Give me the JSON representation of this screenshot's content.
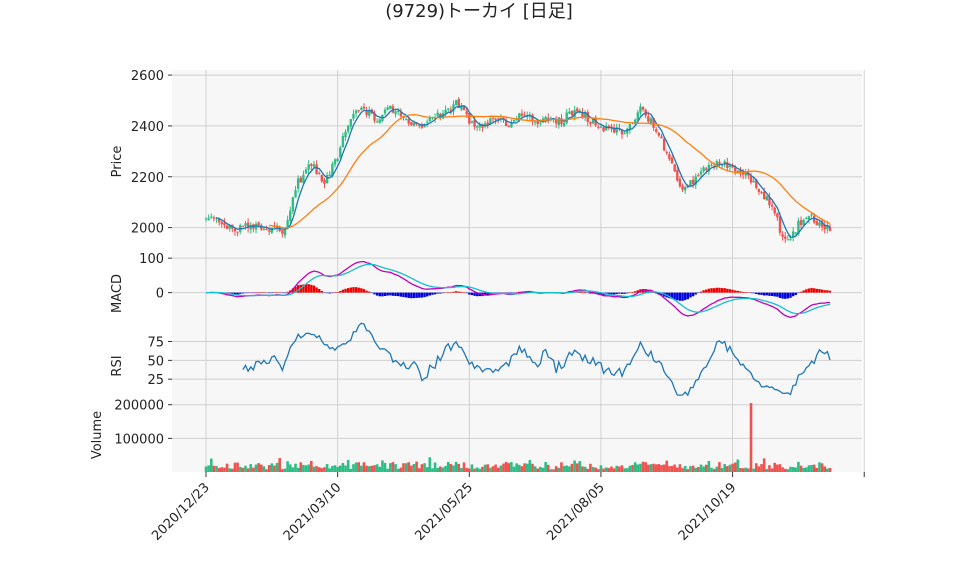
{
  "chart_data": {
    "type": "candlestick",
    "title": "(9729)トーカイ  [日足]",
    "x_tick_labels": [
      "2020/12/23",
      "2021/03/10",
      "2021/05/25",
      "2021/08/05",
      "2021/10/19"
    ],
    "panels": [
      {
        "name": "price",
        "ylabel": "Price",
        "ylim": [
          1900,
          2620
        ],
        "yticks": [
          2000,
          2200,
          2400,
          2600
        ],
        "ytick_labels": [
          "2000",
          "2200",
          "2400",
          "2600"
        ]
      },
      {
        "name": "macd",
        "ylabel": "MACD",
        "ylim": [
          -120,
          115
        ],
        "yticks": [
          0,
          100
        ],
        "ytick_labels": [
          "0",
          "100"
        ]
      },
      {
        "name": "rsi",
        "ylabel": "RSI",
        "ylim": [
          0,
          85
        ],
        "yticks": [
          25,
          50,
          75
        ],
        "ytick_labels": [
          "25",
          "50",
          "75"
        ]
      },
      {
        "name": "volume",
        "ylabel": "Volume",
        "ylim": [
          0,
          220000
        ],
        "yticks": [
          100000,
          200000
        ],
        "ytick_labels": [
          "100000",
          "200000"
        ]
      }
    ],
    "price_anchors": [
      [
        0,
        2040
      ],
      [
        5,
        2030
      ],
      [
        10,
        1990
      ],
      [
        15,
        2000
      ],
      [
        20,
        2010
      ],
      [
        25,
        1995
      ],
      [
        30,
        1990
      ],
      [
        35,
        2180
      ],
      [
        40,
        2250
      ],
      [
        45,
        2170
      ],
      [
        50,
        2280
      ],
      [
        55,
        2440
      ],
      [
        60,
        2460
      ],
      [
        65,
        2430
      ],
      [
        70,
        2470
      ],
      [
        75,
        2430
      ],
      [
        80,
        2390
      ],
      [
        85,
        2440
      ],
      [
        90,
        2440
      ],
      [
        95,
        2490
      ],
      [
        100,
        2420
      ],
      [
        105,
        2400
      ],
      [
        110,
        2440
      ],
      [
        115,
        2410
      ],
      [
        120,
        2450
      ],
      [
        125,
        2410
      ],
      [
        130,
        2430
      ],
      [
        135,
        2420
      ],
      [
        140,
        2460
      ],
      [
        145,
        2430
      ],
      [
        150,
        2400
      ],
      [
        155,
        2380
      ],
      [
        160,
        2380
      ],
      [
        165,
        2470
      ],
      [
        170,
        2400
      ],
      [
        175,
        2300
      ],
      [
        180,
        2150
      ],
      [
        185,
        2180
      ],
      [
        190,
        2230
      ],
      [
        195,
        2260
      ],
      [
        200,
        2240
      ],
      [
        205,
        2210
      ],
      [
        210,
        2150
      ],
      [
        215,
        2080
      ],
      [
        220,
        1940
      ],
      [
        225,
        2010
      ],
      [
        230,
        2040
      ],
      [
        235,
        2000
      ]
    ],
    "volume_spike": {
      "index": 207,
      "value": 205000
    },
    "series": [
      {
        "name": "short MA",
        "color": "#1f77b4"
      },
      {
        "name": "long MA",
        "color": "#ff7f0e"
      },
      {
        "name": "MACD",
        "color": "#c000c0"
      },
      {
        "name": "Signal",
        "color": "#17becf"
      },
      {
        "name": "RSI",
        "color": "#1f77b4"
      }
    ],
    "up_color": "#2ebd85",
    "down_color": "#ef5350"
  }
}
